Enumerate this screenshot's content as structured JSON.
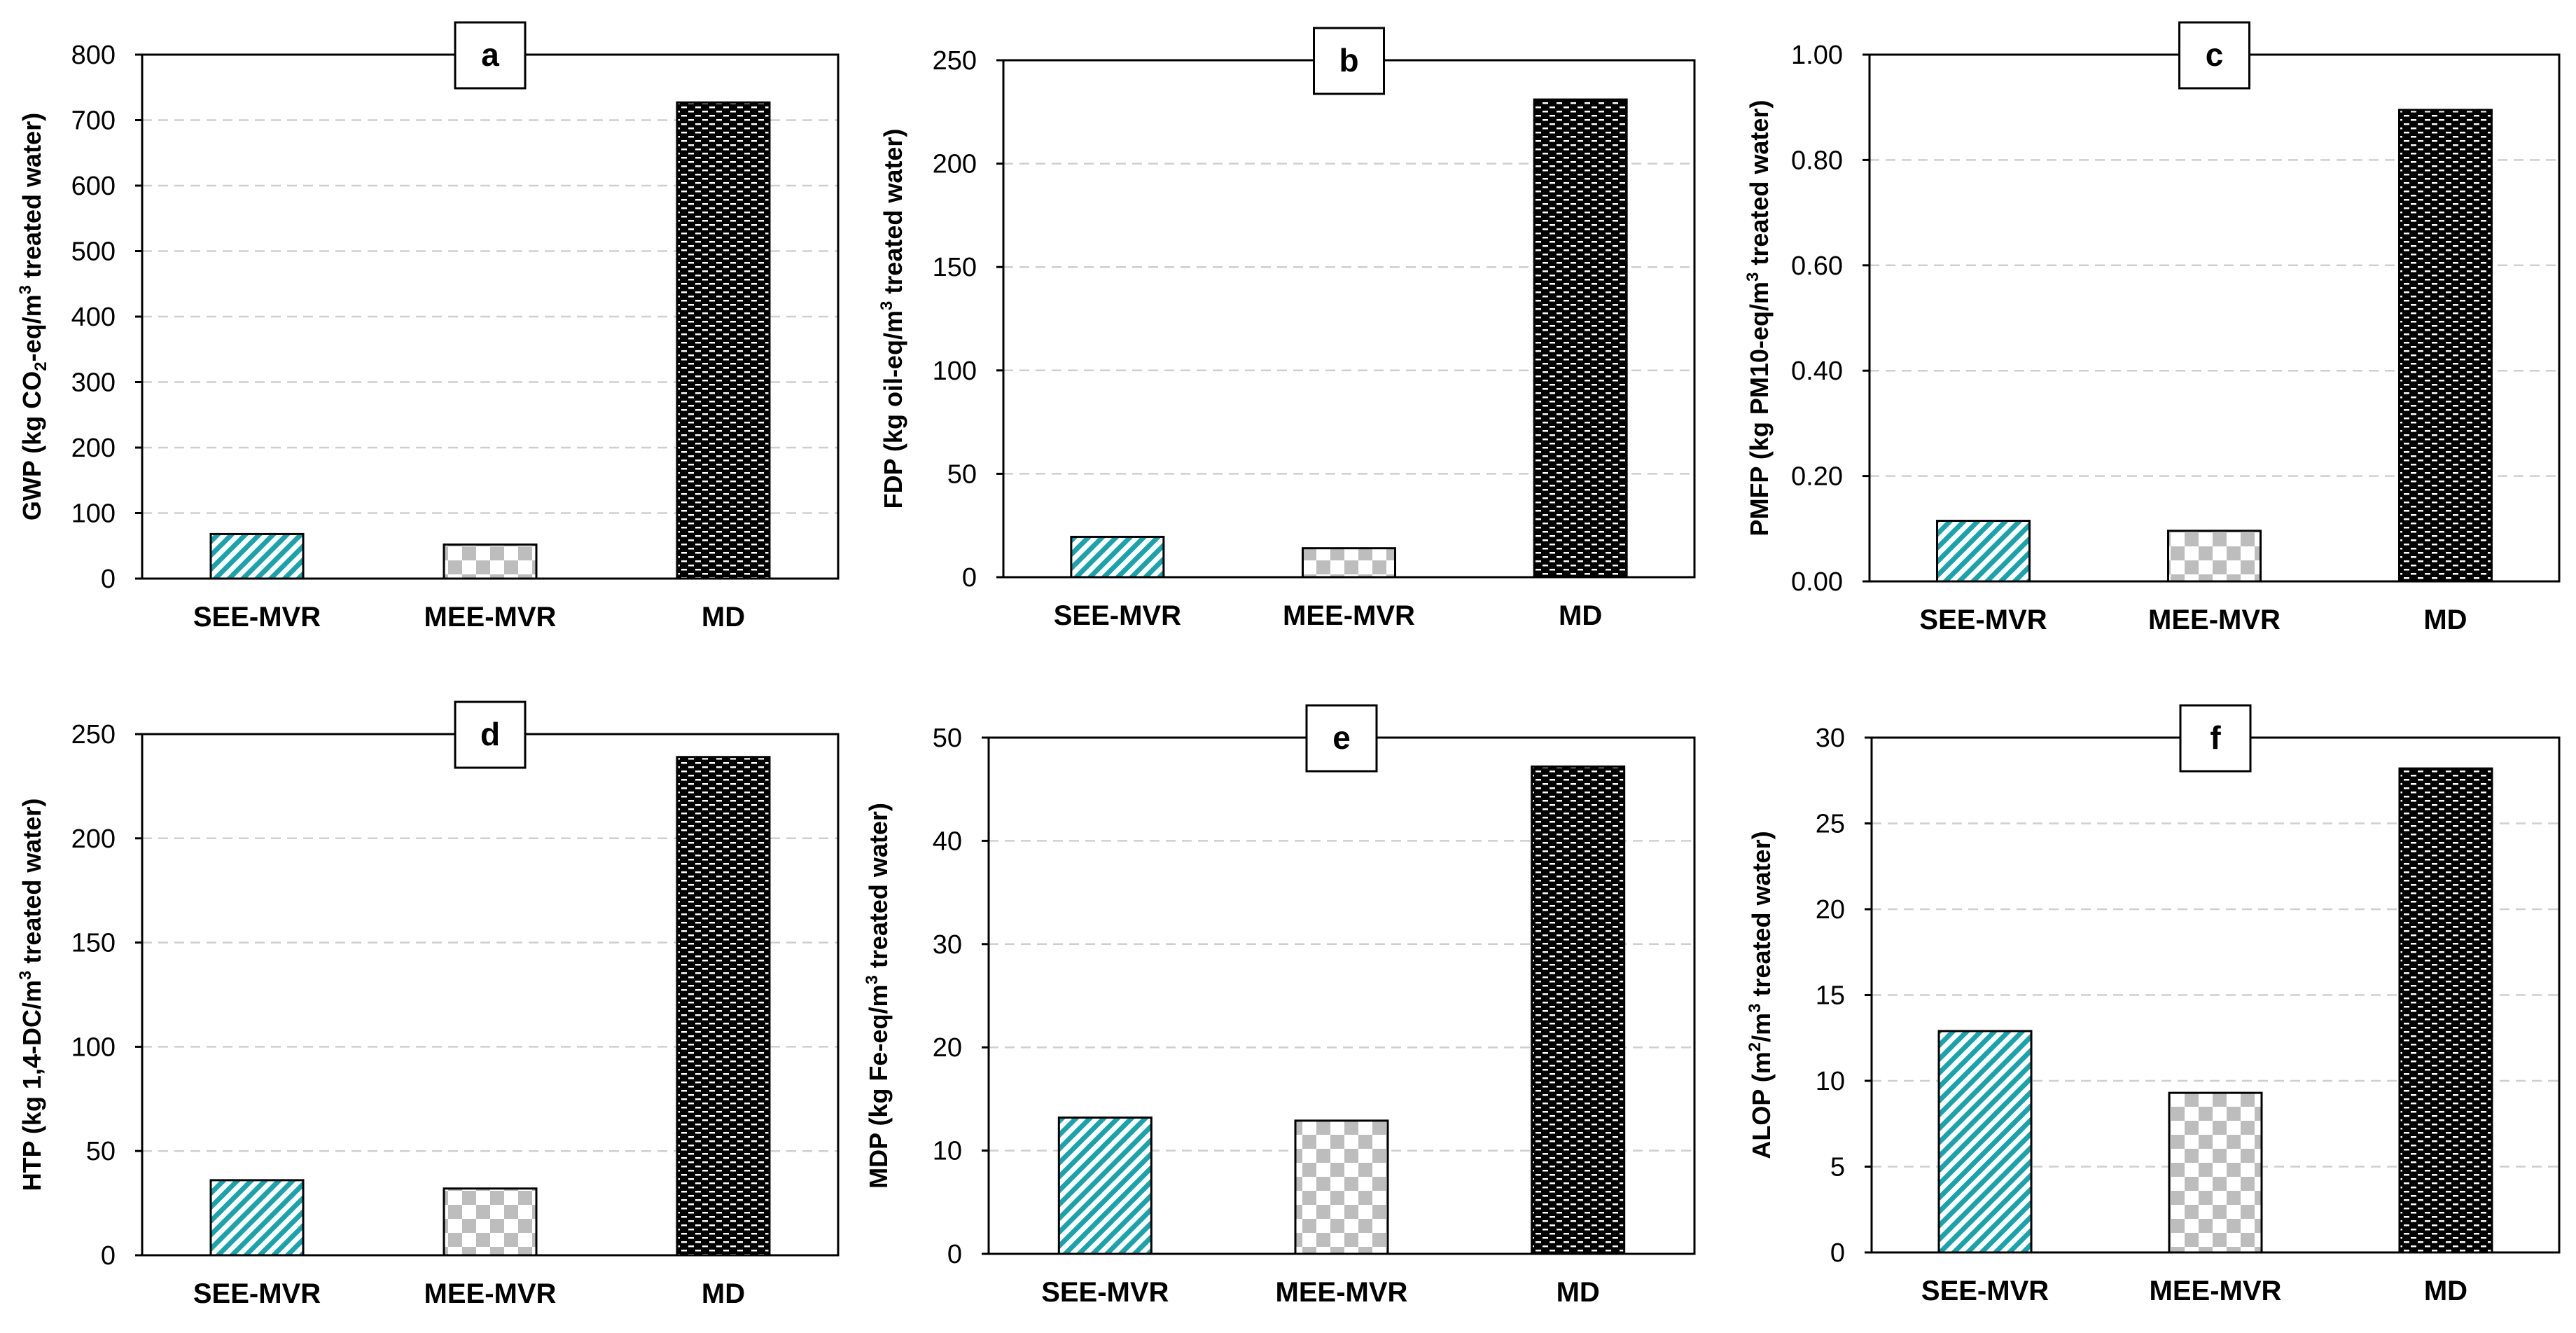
{
  "colors": {
    "see_mvr": "#1aa3ad",
    "mee_mvr": "#bdbdbd",
    "md": "#000000",
    "gridline": "#cfcfcf",
    "frame": "#000000"
  },
  "chart_data": [
    {
      "type": "bar",
      "panel": "a",
      "categories": [
        "SEE-MVR",
        "MEE-MVR",
        "MD"
      ],
      "values": [
        68,
        52,
        727
      ],
      "ylabel_parts": [
        "GWP (kg CO",
        "2",
        "-eq/m",
        "3",
        " treated water)"
      ],
      "ylim": [
        0,
        800
      ],
      "yticks": [
        0,
        100,
        200,
        300,
        400,
        500,
        600,
        700,
        800
      ],
      "ytick_labels": [
        "0",
        "100",
        "200",
        "300",
        "400",
        "500",
        "600",
        "700",
        "800"
      ],
      "grid": true
    },
    {
      "type": "bar",
      "panel": "b",
      "categories": [
        "SEE-MVR",
        "MEE-MVR",
        "MD"
      ],
      "values": [
        19.5,
        14,
        231
      ],
      "ylabel_parts": [
        "FDP (kg oil-eq/m",
        "3",
        " treated water)"
      ],
      "ylim": [
        0,
        250
      ],
      "yticks": [
        0,
        50,
        100,
        150,
        200,
        250
      ],
      "ytick_labels": [
        "0",
        "50",
        "100",
        "150",
        "200",
        "250"
      ],
      "grid": true
    },
    {
      "type": "bar",
      "panel": "c",
      "categories": [
        "SEE-MVR",
        "MEE-MVR",
        "MD"
      ],
      "values": [
        0.115,
        0.096,
        0.895
      ],
      "ylabel_parts": [
        "PMFP (kg PM10-eq/m",
        "3",
        " treated water)"
      ],
      "ylim": [
        0,
        1.0
      ],
      "yticks": [
        0,
        0.2,
        0.4,
        0.6,
        0.8,
        1.0
      ],
      "ytick_labels": [
        "0.00",
        "0.20",
        "0.40",
        "0.60",
        "0.80",
        "1.00"
      ],
      "grid": true
    },
    {
      "type": "bar",
      "panel": "d",
      "categories": [
        "SEE-MVR",
        "MEE-MVR",
        "MD"
      ],
      "values": [
        36,
        32,
        239
      ],
      "ylabel_parts": [
        "HTP (kg 1,4-DC/m",
        "3",
        "  treated water)"
      ],
      "ylim": [
        0,
        250
      ],
      "yticks": [
        0,
        50,
        100,
        150,
        200,
        250
      ],
      "ytick_labels": [
        "0",
        "50",
        "100",
        "150",
        "200",
        "250"
      ],
      "grid": true
    },
    {
      "type": "bar",
      "panel": "e",
      "categories": [
        "SEE-MVR",
        "MEE-MVR",
        "MD"
      ],
      "values": [
        13.2,
        12.9,
        47.2
      ],
      "ylabel_parts": [
        "MDP (kg Fe-eq/m",
        "3",
        " treated water)"
      ],
      "ylim": [
        0,
        50
      ],
      "yticks": [
        0,
        10,
        20,
        30,
        40,
        50
      ],
      "ytick_labels": [
        "0",
        "10",
        "20",
        "30",
        "40",
        "50"
      ],
      "grid": true
    },
    {
      "type": "bar",
      "panel": "f",
      "categories": [
        "SEE-MVR",
        "MEE-MVR",
        "MD"
      ],
      "values": [
        12.9,
        9.3,
        28.2
      ],
      "ylabel_parts": [
        "ALOP (m",
        "2",
        "/m",
        "3",
        " treated water)"
      ],
      "ylim": [
        0,
        30
      ],
      "yticks": [
        0,
        5,
        10,
        15,
        20,
        25,
        30
      ],
      "ytick_labels": [
        "0",
        "5",
        "10",
        "15",
        "20",
        "25",
        "30"
      ],
      "grid": true
    }
  ]
}
